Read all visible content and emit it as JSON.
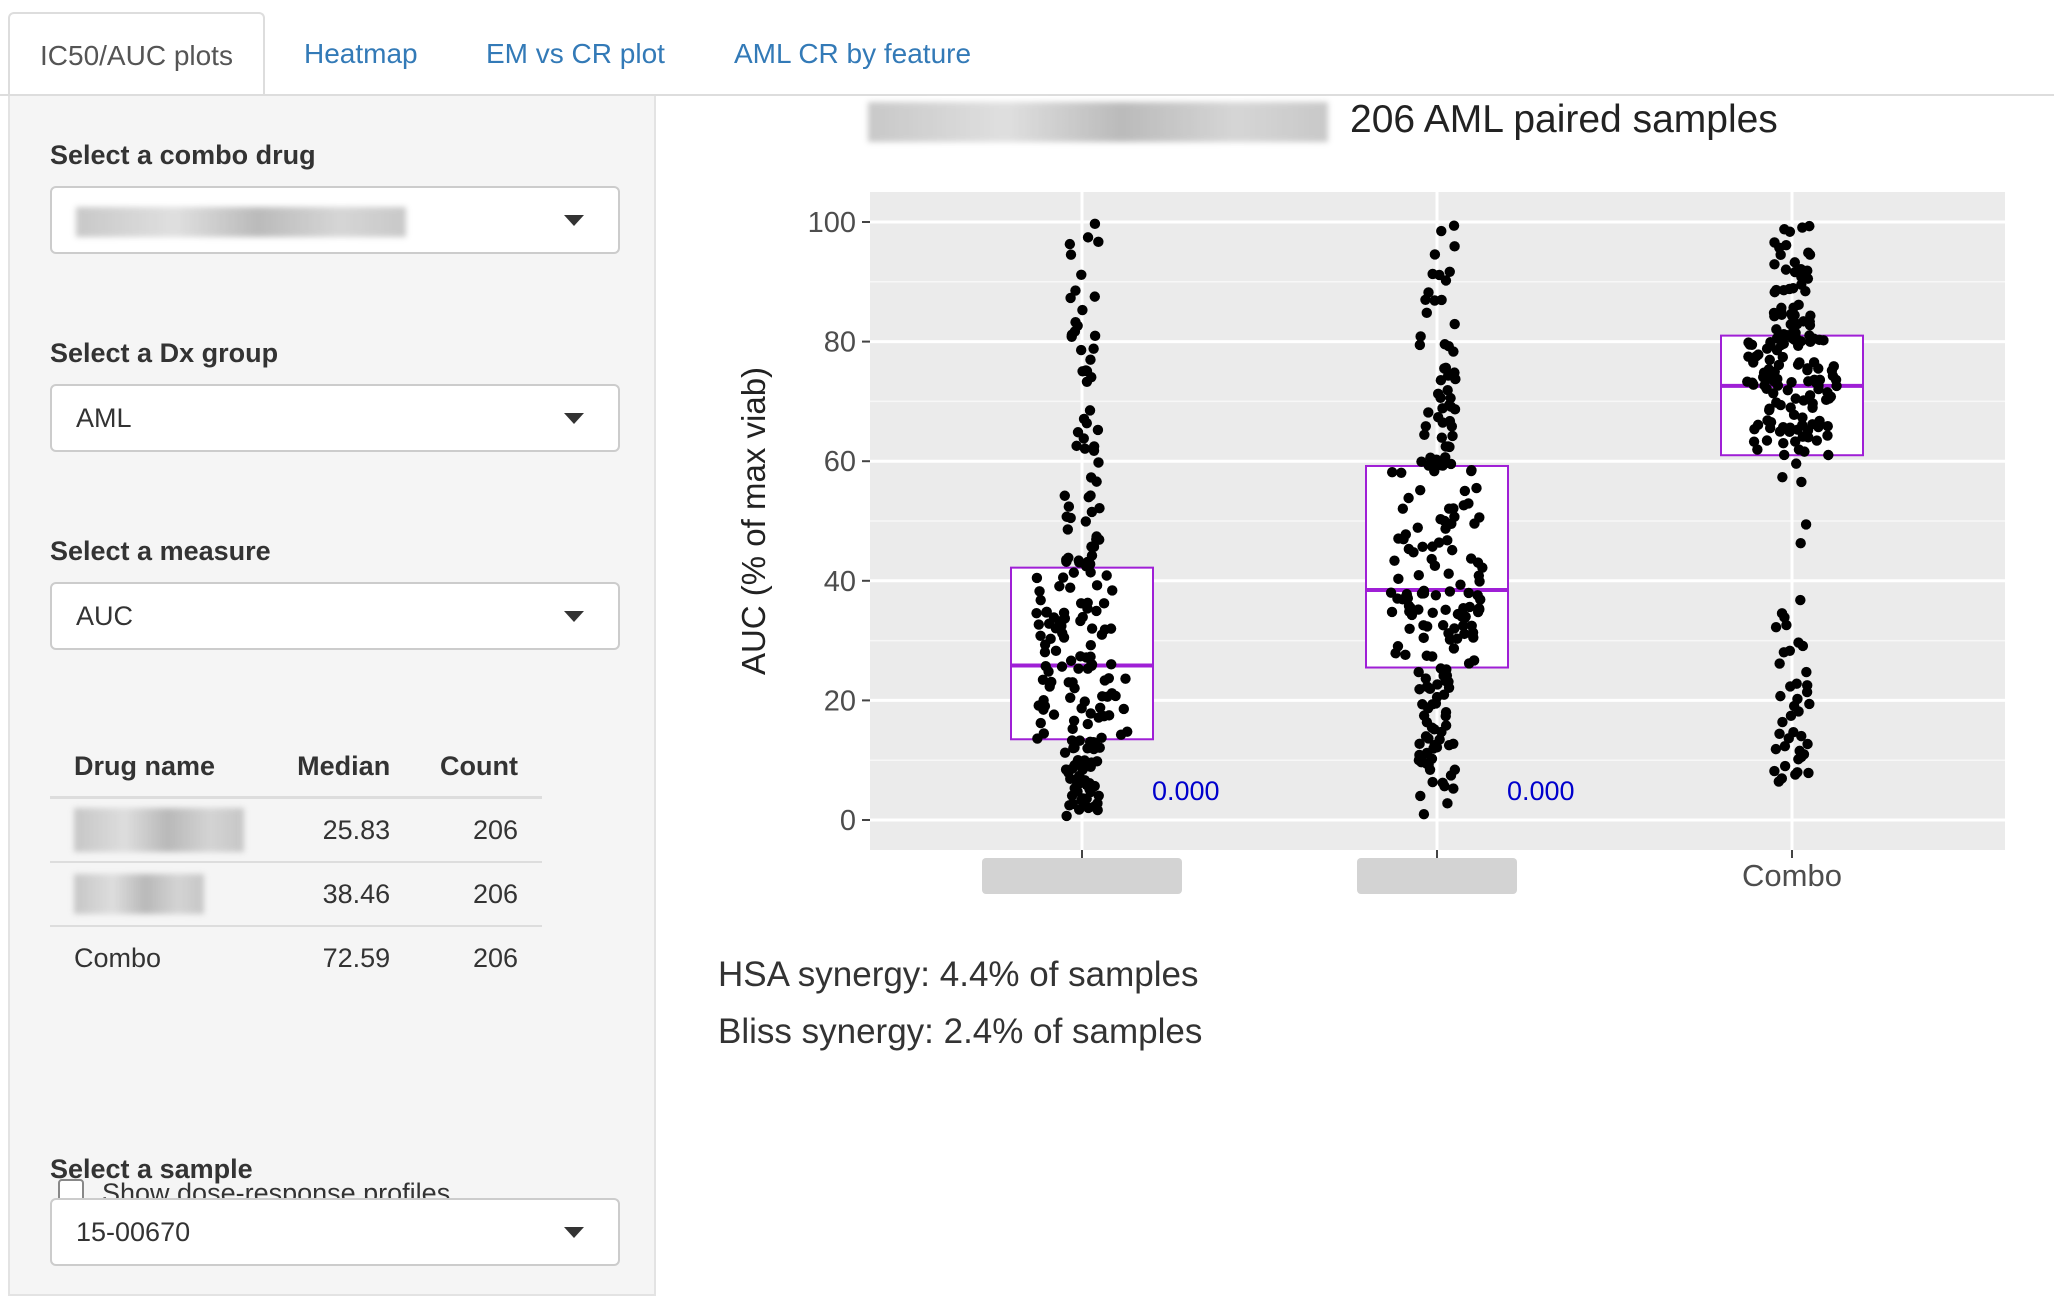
{
  "tabs": [
    "IC50/AUC plots",
    "Heatmap",
    "EM vs CR plot",
    "AML CR by feature"
  ],
  "sidebar": {
    "combo_label": "Select a combo drug",
    "dx_label": "Select a Dx group",
    "dx_value": "AML",
    "measure_label": "Select a measure",
    "measure_value": "AUC",
    "table": {
      "headers": [
        "Drug name",
        "Median",
        "Count"
      ],
      "rows": [
        {
          "name": "",
          "median": "25.83",
          "count": "206"
        },
        {
          "name": "",
          "median": "38.46",
          "count": "206"
        },
        {
          "name": "Combo",
          "median": "72.59",
          "count": "206"
        }
      ]
    },
    "show_profiles_label": "Show dose-response profiles",
    "sample_label": "Select a sample",
    "sample_value": "15-00670"
  },
  "plot": {
    "title_suffix": "206 AML paired samples",
    "hsa_text": "HSA synergy: 4.4% of samples",
    "bliss_text": "Bliss synergy: 2.4% of samples"
  },
  "chart_data": {
    "type": "box",
    "title": "206 AML paired samples",
    "ylabel": "AUC (% of max viab)",
    "ylim": [
      0,
      100
    ],
    "yticks": [
      0,
      20,
      40,
      60,
      80,
      100
    ],
    "categories": [
      "",
      "",
      "Combo"
    ],
    "boxes": [
      {
        "q1": 13.5,
        "median": 25.83,
        "q3": 42.2,
        "pvalue_label": "0.000"
      },
      {
        "q1": 25.5,
        "median": 38.46,
        "q3": 59.2,
        "pvalue_label": "0.000"
      },
      {
        "q1": 61.0,
        "median": 72.59,
        "q3": 81.0,
        "pvalue_label": ""
      }
    ],
    "n_per_group": 206,
    "colors": {
      "box": "#9f1fd6",
      "points": "#000000",
      "panel": "#ebebeb",
      "pvalue": "#0000cc"
    }
  }
}
